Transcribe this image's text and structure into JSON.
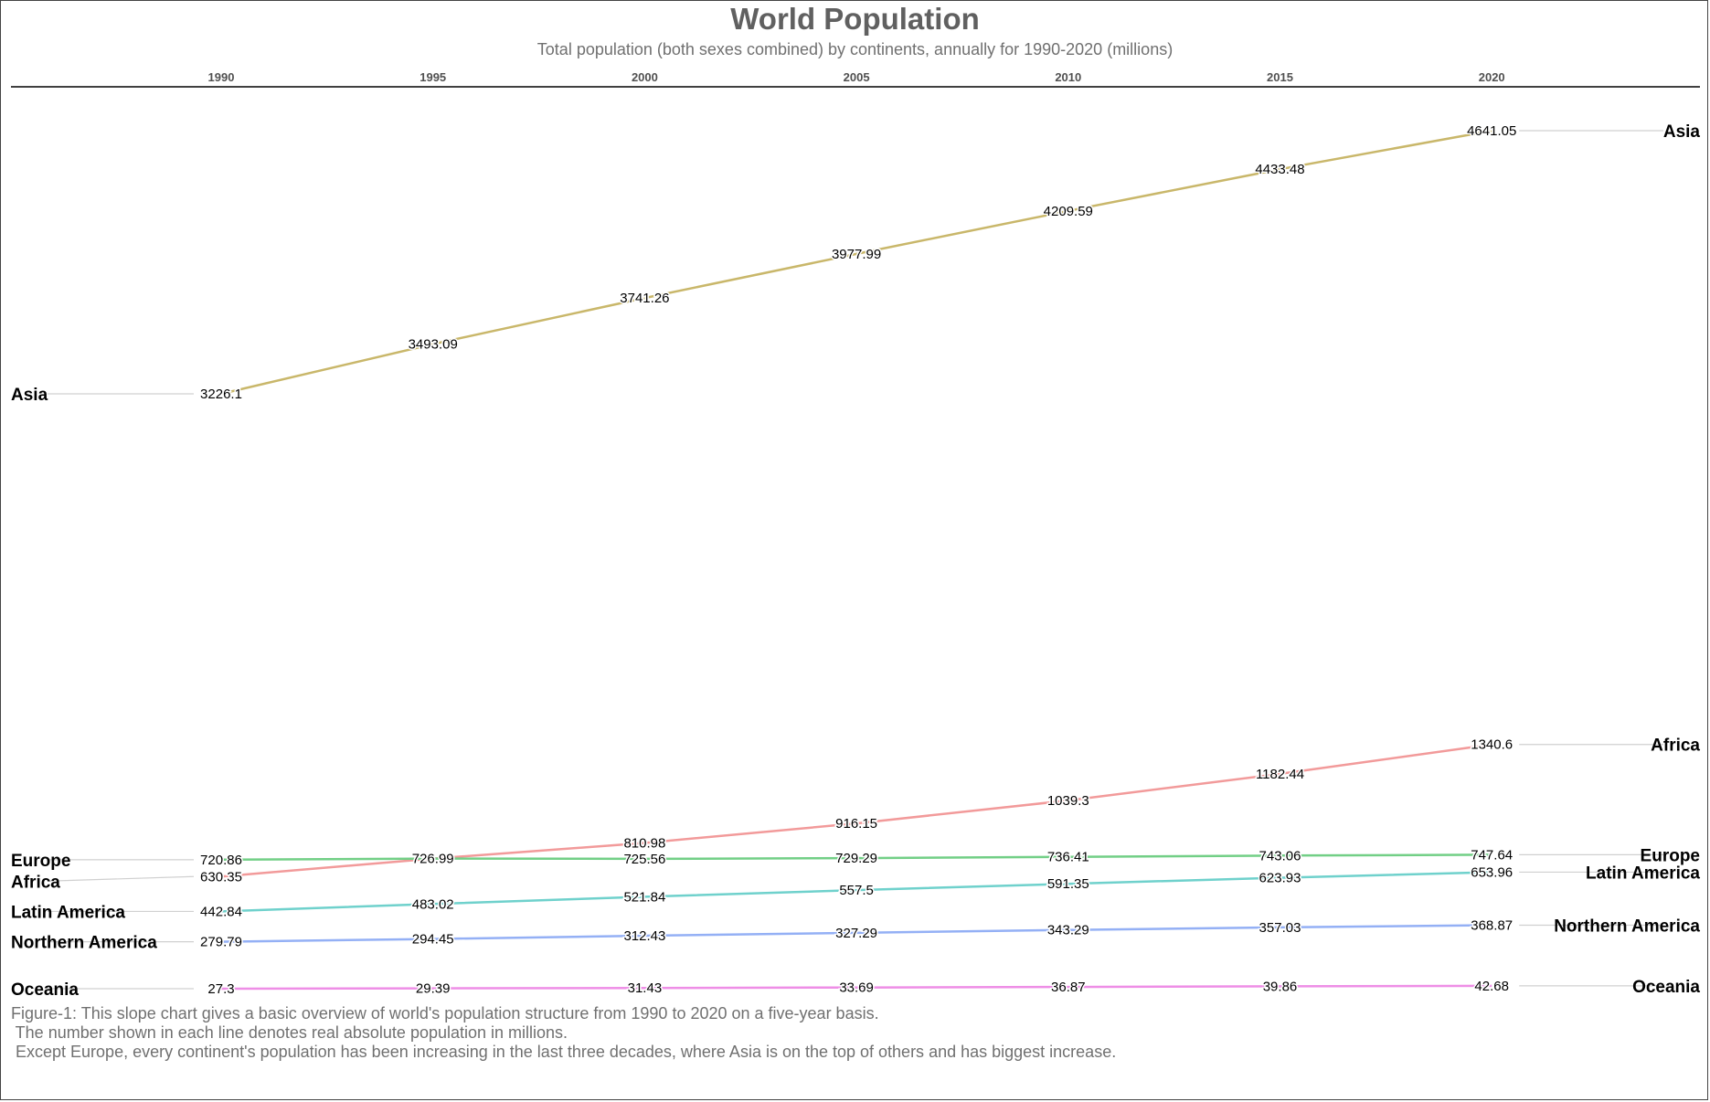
{
  "chart_data": {
    "type": "line",
    "title": "World Population",
    "subtitle": "Total population (both sexes combined) by continents, annually for 1990-2020 (millions)",
    "x": [
      "1990",
      "1995",
      "2000",
      "2005",
      "2010",
      "2015",
      "2020"
    ],
    "ylim": [
      27.3,
      4641.05
    ],
    "grid": false,
    "series": [
      {
        "name": "Asia",
        "color": "#c9b76a",
        "values": [
          3226.1,
          3493.09,
          3741.26,
          3977.99,
          4209.59,
          4433.48,
          4641.05
        ]
      },
      {
        "name": "Africa",
        "color": "#f29a9a",
        "values": [
          630.35,
          726.99,
          810.98,
          916.15,
          1039.3,
          1182.44,
          1340.6
        ]
      },
      {
        "name": "Europe",
        "color": "#72cf86",
        "values": [
          720.86,
          726.99,
          725.56,
          729.29,
          736.41,
          743.06,
          747.64
        ]
      },
      {
        "name": "Latin America",
        "color": "#6fd1cc",
        "values": [
          442.84,
          483.02,
          521.84,
          557.5,
          591.35,
          623.93,
          653.96
        ]
      },
      {
        "name": "Northern America",
        "color": "#94b0f5",
        "values": [
          279.79,
          294.45,
          312.43,
          327.29,
          343.29,
          357.03,
          368.87
        ]
      },
      {
        "name": "Oceania",
        "color": "#ee8ee6",
        "values": [
          27.3,
          29.39,
          31.43,
          33.69,
          36.87,
          39.86,
          42.68
        ]
      }
    ]
  },
  "caption": {
    "line1": "Figure-1: This slope chart gives a basic overview of world's population structure from 1990 to 2020 on a five-year basis.",
    "line2": " The number shown in each line denotes real absolute population in millions.",
    "line3": " Except Europe, every continent's population has been increasing in the last three decades, where Asia is on the top of others and has biggest increase."
  }
}
